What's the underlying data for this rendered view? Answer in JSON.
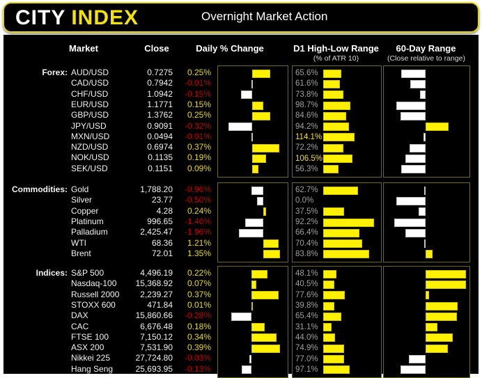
{
  "header": {
    "logo_part1": "CITY",
    "logo_part2": "INDEX",
    "title": "Overnight Market Action"
  },
  "columns": {
    "market": "Market",
    "close": "Close",
    "daily_change": "Daily % Change",
    "d1_range": "D1 High-Low Range",
    "d1_range_sub": "(% of ATR 10)",
    "range60": "60-Day Range",
    "range60_sub": "(Close relative to range)"
  },
  "colors": {
    "accent_yellow": "#f2e205",
    "bar_yellow": "#fff101",
    "negative_red": "#c00000",
    "label_gray": "#a0a0a0",
    "bar_white": "#ffffff",
    "panel_border": "#6f6a15",
    "background": "#000000"
  },
  "chart_data": {
    "type": "table",
    "title": "Overnight Market Action",
    "columns": [
      "Market",
      "Close",
      "Daily % Change",
      "D1 High-Low Range (% of ATR 10)",
      "60-Day Range (Close relative to range)"
    ],
    "legend": "Daily % bars: yellow = positive, white = negative. 60-day bars: yellow = close in upper half of range, white = lower half. Bar positions estimated from pixels (-1..1 of half panel).",
    "groups": [
      {
        "label": "Forex:",
        "rows": [
          {
            "market": "AUD/USD",
            "close": "0.7275",
            "daily_change": "0.25%",
            "daily_change_val": 0.25,
            "d1_range": "65.6%",
            "d1_val": 65.6,
            "range60_pos": -0.6
          },
          {
            "market": "CAD/USD",
            "close": "0.7942",
            "daily_change": "-0.01%",
            "daily_change_val": -0.01,
            "d1_range": "61.6%",
            "d1_val": 61.6,
            "range60_pos": -0.38
          },
          {
            "market": "CHF/USD",
            "close": "1.0942",
            "daily_change": "-0.15%",
            "daily_change_val": -0.15,
            "d1_range": "73.8%",
            "d1_val": 73.8,
            "range60_pos": -0.14
          },
          {
            "market": "EUR/USD",
            "close": "1.1771",
            "daily_change": "0.15%",
            "daily_change_val": 0.15,
            "d1_range": "98.7%",
            "d1_val": 98.7,
            "range60_pos": -0.72
          },
          {
            "market": "GBP/USD",
            "close": "1.3762",
            "daily_change": "0.25%",
            "daily_change_val": 0.25,
            "d1_range": "84.6%",
            "d1_val": 84.6,
            "range60_pos": -0.62
          },
          {
            "market": "JPY/USD",
            "close": "0.9091",
            "daily_change": "-0.32%",
            "daily_change_val": -0.32,
            "d1_range": "94.2%",
            "d1_val": 94.2,
            "range60_pos": 0.57
          },
          {
            "market": "MXN/USD",
            "close": "0.0494",
            "daily_change": "-0.01%",
            "daily_change_val": -0.01,
            "d1_range": "114.1%",
            "d1_val": 114.1,
            "range60_pos": -0.05
          },
          {
            "market": "NZD/USD",
            "close": "0.6974",
            "daily_change": "0.37%",
            "daily_change_val": 0.37,
            "d1_range": "72.2%",
            "d1_val": 72.2,
            "range60_pos": -0.4
          },
          {
            "market": "NOK/USD",
            "close": "0.1135",
            "daily_change": "0.19%",
            "daily_change_val": 0.19,
            "d1_range": "106.5%",
            "d1_val": 106.5,
            "range60_pos": -0.5
          },
          {
            "market": "SEK/USD",
            "close": "0.1151",
            "daily_change": "0.09%",
            "daily_change_val": 0.09,
            "d1_range": "56.3%",
            "d1_val": 56.3,
            "range60_pos": -0.6
          }
        ]
      },
      {
        "label": "Commodities:",
        "rows": [
          {
            "market": "Gold",
            "close": "1,788.20",
            "daily_change": "-0.96%",
            "daily_change_val": -0.96,
            "d1_range": "62.7%",
            "d1_val": 62.7,
            "range60_pos": -0.04
          },
          {
            "market": "Silver",
            "close": "23.77",
            "daily_change": "-0.50%",
            "daily_change_val": -0.5,
            "d1_range": "0.0%",
            "d1_val": 0.0,
            "range60_pos": -0.73
          },
          {
            "market": "Copper",
            "close": "4.28",
            "daily_change": "0.24%",
            "daily_change_val": 0.24,
            "d1_range": "37.5%",
            "d1_val": 37.5,
            "range60_pos": -0.18
          },
          {
            "market": "Platinum",
            "close": "996.65",
            "daily_change": "-1.46%",
            "daily_change_val": -1.46,
            "d1_range": "92.2%",
            "d1_val": 92.2,
            "range60_pos": -0.77
          },
          {
            "market": "Palladium",
            "close": "2,425.47",
            "daily_change": "-1.96%",
            "daily_change_val": -1.96,
            "d1_range": "66.4%",
            "d1_val": 66.4,
            "range60_pos": -0.5
          },
          {
            "market": "WTI",
            "close": "68.36",
            "daily_change": "1.21%",
            "daily_change_val": 1.21,
            "d1_range": "70.4%",
            "d1_val": 70.4,
            "range60_pos": -0.04
          },
          {
            "market": "Brent",
            "close": "72.01",
            "daily_change": "1.35%",
            "daily_change_val": 1.35,
            "d1_range": "83.8%",
            "d1_val": 83.8,
            "range60_pos": 0.18
          }
        ]
      },
      {
        "label": "Indices:",
        "rows": [
          {
            "market": "S&P 500",
            "close": "4,496.19",
            "daily_change": "0.22%",
            "daily_change_val": 0.22,
            "d1_range": "48.1%",
            "d1_val": 48.1,
            "range60_pos": 1.0
          },
          {
            "market": "Nasdaq-100",
            "close": "15,368.92",
            "daily_change": "0.07%",
            "daily_change_val": 0.07,
            "d1_range": "40.5%",
            "d1_val": 40.5,
            "range60_pos": 1.0
          },
          {
            "market": "Russell 2000",
            "close": "2,239.27",
            "daily_change": "0.37%",
            "daily_change_val": 0.37,
            "d1_range": "77.6%",
            "d1_val": 77.6,
            "range60_pos": 0.09
          },
          {
            "market": "STOXX 600",
            "close": "471.84",
            "daily_change": "0.01%",
            "daily_change_val": 0.01,
            "d1_range": "39.8%",
            "d1_val": 39.8,
            "range60_pos": 0.8
          },
          {
            "market": "DAX",
            "close": "15,860.66",
            "daily_change": "-0.28%",
            "daily_change_val": -0.28,
            "d1_range": "65.4%",
            "d1_val": 65.4,
            "range60_pos": 0.77
          },
          {
            "market": "CAC",
            "close": "6,676.48",
            "daily_change": "0.18%",
            "daily_change_val": 0.18,
            "d1_range": "31.1%",
            "d1_val": 31.1,
            "range60_pos": 0.29
          },
          {
            "market": "FTSE 100",
            "close": "7,150.12",
            "daily_change": "0.34%",
            "daily_change_val": 0.34,
            "d1_range": "44.0%",
            "d1_val": 44.0,
            "range60_pos": 0.68
          },
          {
            "market": "ASX 200",
            "close": "7,531.90",
            "daily_change": "0.39%",
            "daily_change_val": 0.39,
            "d1_range": "74.9%",
            "d1_val": 74.9,
            "range60_pos": 0.55
          },
          {
            "market": "Nikkei 225",
            "close": "27,724.80",
            "daily_change": "-0.03%",
            "daily_change_val": -0.03,
            "d1_range": "77.0%",
            "d1_val": 77.0,
            "range60_pos": -0.41
          },
          {
            "market": "Hang Seng",
            "close": "25,693.95",
            "daily_change": "-0.13%",
            "daily_change_val": -0.13,
            "d1_range": "97.1%",
            "d1_val": 97.1,
            "range60_pos": -0.62
          }
        ]
      }
    ]
  }
}
